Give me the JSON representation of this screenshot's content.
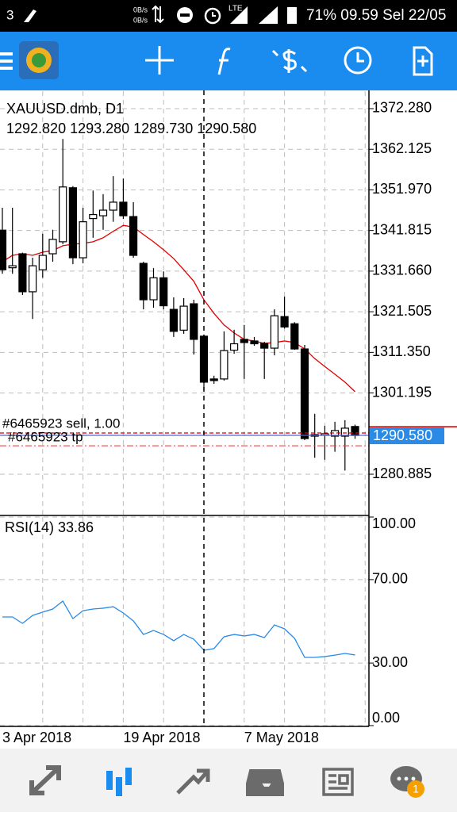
{
  "status_bar": {
    "left": "3",
    "speed": [
      "0B/s",
      "0B/s"
    ],
    "network": "LTE",
    "right": "71% 09.59 Sel 22/05"
  },
  "chart_data": [
    {
      "type": "candlestick",
      "title": "XAUUSD.dmb, D1",
      "subtitle": "1292.820 1293.280 1289.730 1290.580",
      "categories": [
        "3 Apr 2018",
        null,
        null,
        null,
        null,
        null,
        null,
        null,
        null,
        null,
        null,
        null,
        "19 Apr 2018",
        null,
        null,
        null,
        null,
        null,
        null,
        null,
        null,
        null,
        null,
        null,
        "7 May 2018",
        null,
        null,
        null,
        null,
        null,
        null,
        null,
        null,
        null,
        null,
        null
      ],
      "open": [
        1341.9,
        1332.5,
        1336.0,
        1326.5,
        1332.0,
        1336.0,
        1339.0,
        1352.5,
        1335.0,
        1344.8,
        1345.5,
        1346.9,
        1348.9,
        1345.3,
        1333.6,
        1324.5,
        1330.0,
        1322.1,
        1316.9,
        1323.5,
        1315.4,
        1304.7,
        1304.7,
        1311.9,
        1314.6,
        1314.2,
        1313.6,
        1312.4,
        1320.3,
        1318.5,
        1312.2,
        1290.4,
        1290.6,
        1290.4,
        1290.4,
        1292.82
      ],
      "high": [
        1347.5,
        1347.5,
        1336.3,
        1335.0,
        1341.0,
        1342.0,
        1364.7,
        1352.9,
        1347.5,
        1351.8,
        1350.9,
        1355.4,
        1354.8,
        1348.9,
        1334.0,
        1332.4,
        1331.6,
        1325.1,
        1324.9,
        1324.5,
        1315.8,
        1305.5,
        1316.6,
        1317.0,
        1318.2,
        1315.2,
        1314.0,
        1322.1,
        1325.3,
        1318.9,
        1313.2,
        1296.0,
        1293.0,
        1294.0,
        1294.4,
        1293.28
      ],
      "low": [
        1331.0,
        1331.0,
        1325.7,
        1319.7,
        1330.0,
        1334.0,
        1338.4,
        1333.4,
        1333.6,
        1340.0,
        1342.0,
        1344.0,
        1344.7,
        1335.0,
        1322.1,
        1322.5,
        1322.1,
        1315.2,
        1316.0,
        1310.8,
        1301.9,
        1303.5,
        1304.3,
        1311.0,
        1304.7,
        1313.0,
        1304.7,
        1310.6,
        1317.3,
        1312.0,
        1289.4,
        1285.0,
        1284.5,
        1286.5,
        1281.8,
        1289.73
      ],
      "close": [
        1332.0,
        1333.0,
        1326.5,
        1333.0,
        1335.6,
        1339.6,
        1352.7,
        1335.0,
        1344.0,
        1345.8,
        1346.9,
        1348.9,
        1345.5,
        1335.6,
        1324.5,
        1330.0,
        1323.0,
        1316.6,
        1322.9,
        1314.6,
        1303.9,
        1304.3,
        1311.8,
        1313.5,
        1313.8,
        1313.5,
        1312.4,
        1320.5,
        1317.7,
        1312.2,
        1289.8,
        1290.8,
        1291.0,
        1291.8,
        1292.4,
        1290.58
      ],
      "up_color": "#ffffff",
      "down_color": "#000000",
      "ma_color": "#e00000",
      "ma_values": [
        1334.0,
        1335.6,
        1336.0,
        1335.6,
        1336.4,
        1336.8,
        1338.0,
        1338.4,
        1338.6,
        1339.0,
        1340.0,
        1341.6,
        1343.1,
        1342.7,
        1340.8,
        1339.0,
        1337.0,
        1334.8,
        1332.0,
        1329.1,
        1324.5,
        1321.1,
        1318.2,
        1316.2,
        1314.6,
        1314.2,
        1313.6,
        1313.8,
        1314.2,
        1313.8,
        1312.2,
        1309.8,
        1307.8,
        1305.9,
        1303.9,
        1301.5
      ],
      "ylim": [
        1270.58,
        1376.64
      ],
      "yticks": [
        {
          "value": 1372.28,
          "label": "1372.280"
        },
        1362.125,
        {
          "value": 1351.97,
          "label": "1351.970"
        },
        1341.815,
        {
          "value": 1331.66,
          "label": "1331.660"
        },
        1321.505,
        {
          "value": 1311.35,
          "label": "1311.350"
        },
        1301.195,
        1280.885
      ],
      "grid": true,
      "price_label": {
        "value": 1290.58,
        "label": "1290.580"
      },
      "order_lines": [
        {
          "label": "#6465923 sell, 1.00",
          "price": 1291.2,
          "color": "#d00000"
        },
        {
          "label": "#6465923 tp",
          "price": 1290.6,
          "color": "#4a6cd4"
        }
      ],
      "stop_line": {
        "price": 1288.0,
        "color": "#e03030"
      }
    },
    {
      "type": "line",
      "title": "RSI(14) 33.86",
      "series": [
        {
          "color": "#2a8ae6",
          "values": [
            52.1,
            52.1,
            49.0,
            52.8,
            54.4,
            55.9,
            59.7,
            51.3,
            55.1,
            55.9,
            56.3,
            57.0,
            54.0,
            50.2,
            43.7,
            45.6,
            43.7,
            40.7,
            43.7,
            41.4,
            36.1,
            36.9,
            42.6,
            43.7,
            43.0,
            43.7,
            42.2,
            48.3,
            46.4,
            41.8,
            32.7,
            32.7,
            33.1,
            33.8,
            34.6,
            33.86
          ]
        }
      ],
      "ylim": [
        0,
        100
      ],
      "yticks": [
        {
          "value": 100,
          "label": "100.00"
        },
        {
          "value": 70,
          "label": "70.00"
        },
        {
          "value": 30,
          "label": "30.00"
        },
        {
          "value": 0,
          "label": "0.00"
        }
      ],
      "grid": true
    }
  ],
  "nav": {
    "badge": "1"
  }
}
